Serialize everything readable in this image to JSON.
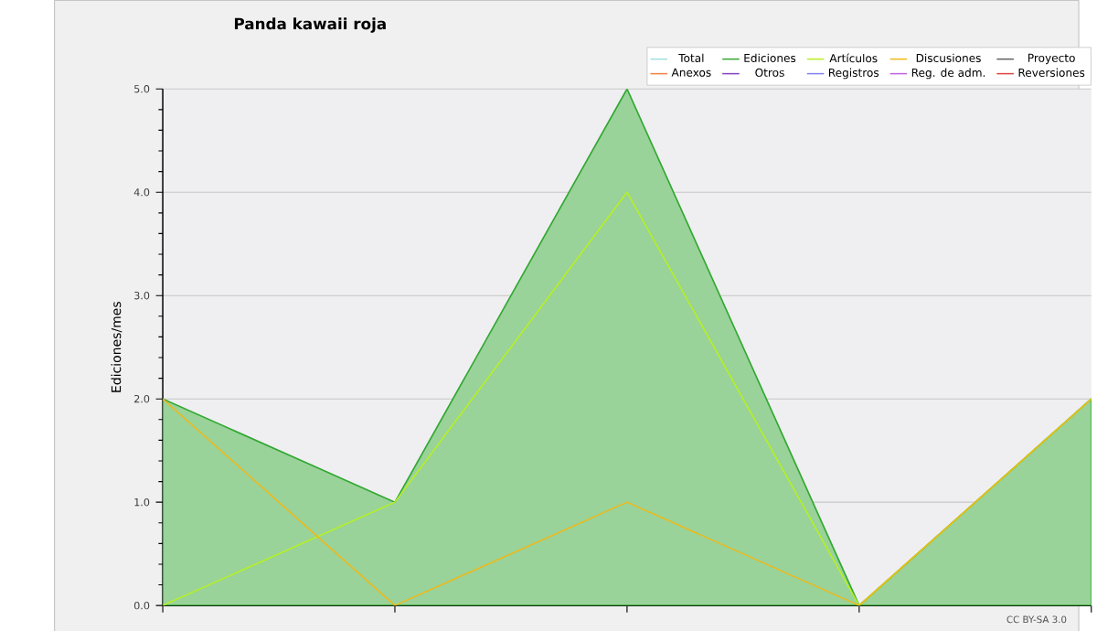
{
  "chart_data": {
    "type": "line",
    "title": "Panda kawaii roja",
    "ylabel": "Ediciones/mes",
    "annotations": [
      "CC BY-SA 3.0"
    ],
    "categories": [
      null,
      null,
      null,
      null,
      null
    ],
    "series": [
      {
        "name": "Total",
        "color": "#a0dede",
        "values": [
          null,
          null,
          null,
          null,
          null
        ]
      },
      {
        "name": "Ediciones",
        "type": "area",
        "color": "#33a833",
        "values": [
          2,
          1,
          5,
          0,
          2
        ]
      },
      {
        "name": "Artículos",
        "color": "#b8f020",
        "values": [
          0,
          1,
          4,
          0,
          2
        ]
      },
      {
        "name": "Discusiones",
        "color": "#f0b818",
        "values": [
          2,
          0,
          1,
          0,
          2
        ]
      },
      {
        "name": "Proyecto",
        "color": "#606060",
        "values": [
          null,
          null,
          null,
          null,
          null
        ]
      },
      {
        "name": "Anexos",
        "color": "#f08040",
        "values": [
          null,
          null,
          null,
          null,
          null
        ]
      },
      {
        "name": "Otros",
        "color": "#8040c0",
        "values": [
          null,
          null,
          null,
          null,
          null
        ]
      },
      {
        "name": "Registros",
        "color": "#8080f0",
        "values": [
          null,
          null,
          null,
          null,
          null
        ]
      },
      {
        "name": "Reg. de adm.",
        "color": "#c060e0",
        "values": [
          null,
          null,
          null,
          null,
          null
        ]
      },
      {
        "name": "Reversiones",
        "color": "#e04040",
        "values": [
          null,
          null,
          null,
          null,
          null
        ]
      }
    ],
    "ylim": [
      0,
      5
    ],
    "yticks": [
      {
        "value": 0,
        "label": "0.0"
      },
      {
        "value": 1,
        "label": "1.0"
      },
      {
        "value": 2,
        "label": "2.0"
      },
      {
        "value": 3,
        "label": "3.0"
      },
      {
        "value": 4,
        "label": "4.0"
      },
      {
        "value": 5,
        "label": "5.0"
      }
    ],
    "grid": "y",
    "legend": "top right"
  }
}
